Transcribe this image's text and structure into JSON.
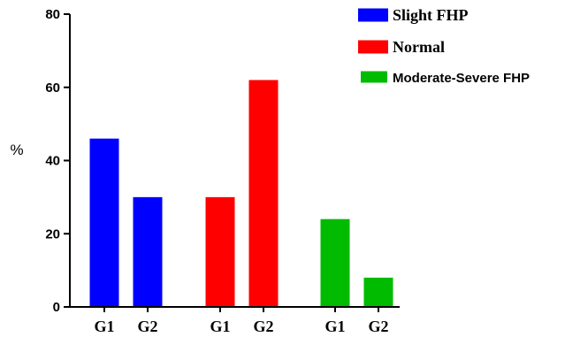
{
  "chart_data": {
    "type": "bar",
    "ylabel": "%",
    "ylim": [
      0,
      80
    ],
    "yticks": [
      0,
      20,
      40,
      60,
      80
    ],
    "grid": false,
    "legend_position": "top-right",
    "groups": [
      {
        "name": "Slight FHP",
        "color": "#0000ff",
        "categories": [
          "G1",
          "G2"
        ],
        "values": [
          46,
          30
        ]
      },
      {
        "name": "Normal",
        "color": "#ff0000",
        "categories": [
          "G1",
          "G2"
        ],
        "values": [
          30,
          62
        ]
      },
      {
        "name": "Moderate-Severe FHP",
        "color": "#00bb00",
        "categories": [
          "G1",
          "G2"
        ],
        "values": [
          24,
          8
        ]
      }
    ]
  }
}
